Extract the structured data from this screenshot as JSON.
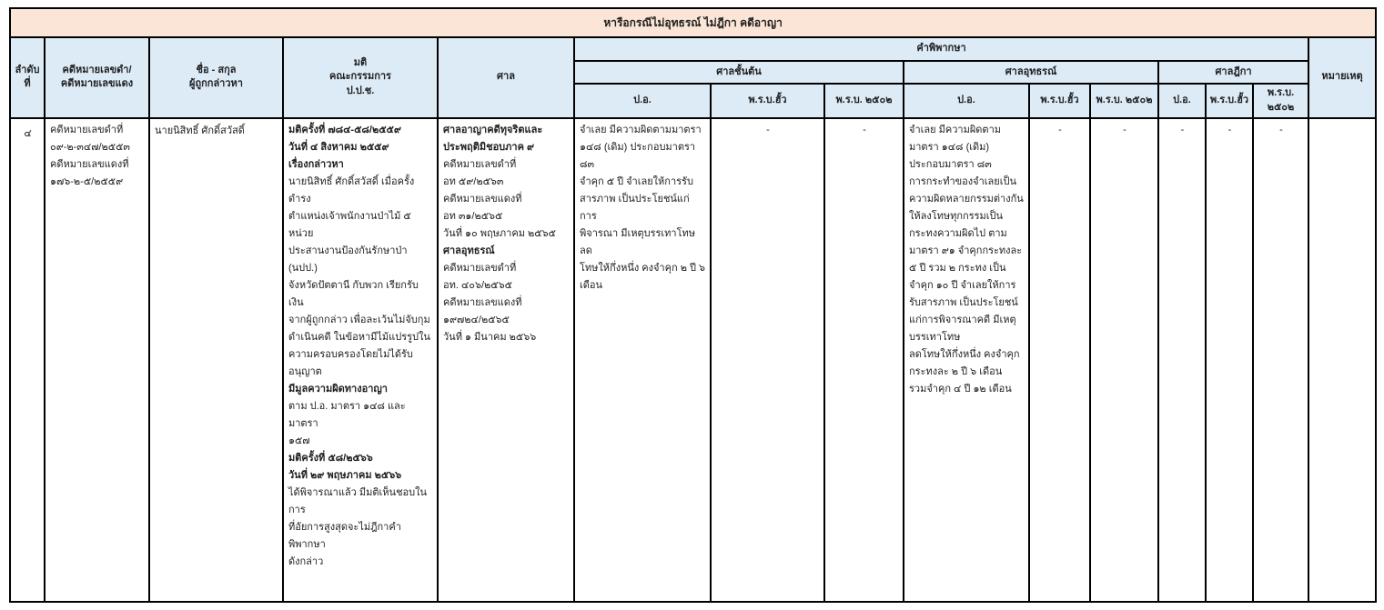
{
  "title": "หารือกรณีไม่อุทธรณ์ ไม่ฎีกา คดีอาญา",
  "colors": {
    "title_bg": "#fbe5d6",
    "header_bg": "#ddebf7",
    "border": "#000000"
  },
  "header": {
    "no": "ลำดับ\nที่",
    "case": "คดีหมายเลขดำ/\nคดีหมายเลขแดง",
    "name": "ชื่อ - สกุล\nผู้ถูกกล่าวหา",
    "resolution": "มติ\nคณะกรรมการ\nป.ป.ช.",
    "court": "ศาล",
    "judgment": "คำพิพากษา",
    "court_levels": [
      "ศาลชั้นต้น",
      "ศาลอุทธรณ์",
      "ศาลฎีกา"
    ],
    "subcols": [
      "ป.อ.",
      "พ.ร.บ.ฮั้ว",
      "พ.ร.บ. ๒๕๐๒"
    ],
    "note": "หมายเหตุ"
  },
  "row": {
    "no": "๔",
    "case_lines": [
      {
        "t": "คดีหมายเลขดำที่",
        "b": false
      },
      {
        "t": "๐๙-๒-๓๔๗/๒๕๕๓",
        "b": false
      },
      {
        "t": "คดีหมายเลขแดงที่",
        "b": false
      },
      {
        "t": "๑๗๖-๒-๕/๒๕๕๙",
        "b": false
      }
    ],
    "name": "นายนิสิทธิ์  ศักดิ์สวัสดิ์",
    "nacc_lines": [
      {
        "t": "มติครั้งที่ ๗๘๔-๕๘/๒๕๕๙",
        "b": true
      },
      {
        "t": "วันที่ ๔ สิงหาคม ๒๕๕๙",
        "b": true
      },
      {
        "t": "เรื่องกล่าวหา",
        "b": true
      },
      {
        "t": "นายนิสิทธิ์  ศักดิ์สวัสดิ์ เมื่อครั้งดำรง",
        "b": false
      },
      {
        "t": "ตำแหน่งเจ้าพนักงานป่าไม้ ๕ หน่วย",
        "b": false
      },
      {
        "t": "ประสานงานป้องกันรักษาป่า (นปป.)",
        "b": false
      },
      {
        "t": "จังหวัดปัตตานี กับพวก เรียกรับเงิน",
        "b": false
      },
      {
        "t": "จากผู้ถูกกล่าว เพื่อละเว้นไม่จับกุม",
        "b": false
      },
      {
        "t": "ดำเนินคดี ในข้อหามีไม้แปรรูปใน",
        "b": false
      },
      {
        "t": "ความครอบครองโดยไม่ได้รับอนุญาต",
        "b": false
      },
      {
        "t": "มีมูลความผิดทางอาญา",
        "b": true
      },
      {
        "t": "ตาม ป.อ. มาตรา ๑๔๘ และมาตรา",
        "b": false
      },
      {
        "t": "๑๕๗",
        "b": false
      },
      {
        "t": "มติครั้งที่ ๕๘/๒๕๖๖",
        "b": true
      },
      {
        "t": "วันที่ ๒๙ พฤษภาคม ๒๕๖๖",
        "b": true
      },
      {
        "t": "ได้พิจารณาแล้ว มีมติเห็นชอบในการ",
        "b": false
      },
      {
        "t": "ที่อัยการสูงสุดจะไม่ฎีกาคำพิพากษา",
        "b": false
      },
      {
        "t": "ดังกล่าว",
        "b": false
      }
    ],
    "court_lines": [
      {
        "t": "ศาลอาญาคดีทุจริตและ",
        "b": true
      },
      {
        "t": "ประพฤติมิชอบภาค ๙",
        "b": true
      },
      {
        "t": "คดีหมายเลขดำที่",
        "b": false
      },
      {
        "t": "อท ๕๙/๒๕๖๓",
        "b": false
      },
      {
        "t": "คดีหมายเลขแดงที่",
        "b": false
      },
      {
        "t": "อท ๓๑/๒๕๖๕",
        "b": false
      },
      {
        "t": "วันที่ ๑๐ พฤษภาคม ๒๕๖๕",
        "b": false
      },
      {
        "t": "ศาลอุทธรณ์",
        "b": true
      },
      {
        "t": "คดีหมายเลขดำที่",
        "b": false
      },
      {
        "t": "อท. ๔๐๖/๒๕๖๕",
        "b": false
      },
      {
        "t": "คดีหมายเลขแดงที่",
        "b": false
      },
      {
        "t": "๑๙๗๒๔/๒๕๖๕",
        "b": false
      },
      {
        "t": "วันที่ ๑ มีนาคม ๒๕๖๖",
        "b": false
      }
    ],
    "first_instance": {
      "po_lines": [
        {
          "t": "จำเลย มีความผิดตามมาตรา",
          "b": false
        },
        {
          "t": "๑๔๘ (เดิม) ประกอบมาตรา ๘๓",
          "b": false
        },
        {
          "t": "จำคุก ๕ ปี จำเลยให้การรับ",
          "b": false
        },
        {
          "t": "สารภาพ เป็นประโยชน์แก่การ",
          "b": false
        },
        {
          "t": "พิจารณา มีเหตุบรรเทาโทษ ลด",
          "b": false
        },
        {
          "t": "โทษให้กึ่งหนึ่ง คงจำคุก ๒ ปี ๖",
          "b": false
        },
        {
          "t": "เดือน",
          "b": false
        }
      ],
      "hua": "-",
      "act2502": "-"
    },
    "appeal": {
      "po_lines": [
        {
          "t": "จำเลย มีความผิดตาม",
          "b": false
        },
        {
          "t": "มาตรา ๑๔๘ (เดิม)",
          "b": false
        },
        {
          "t": "ประกอบมาตรา ๘๓",
          "b": false
        },
        {
          "t": "การกระทำของจำเลยเป็น",
          "b": false
        },
        {
          "t": "ความผิดหลายกรรมต่างกัน",
          "b": false
        },
        {
          "t": "ให้ลงโทษทุกกรรมเป็น",
          "b": false
        },
        {
          "t": "กระทงความผิดไป ตาม",
          "b": false
        },
        {
          "t": "มาตรา ๙๑ จำคุกกระทงละ",
          "b": false
        },
        {
          "t": " ๕ ปี รวม ๒ กระทง เป็น",
          "b": false
        },
        {
          "t": "จำคุก ๑๐ ปี จำเลยให้การ",
          "b": false
        },
        {
          "t": "รับสารภาพ เป็นประโยชน์",
          "b": false
        },
        {
          "t": "แก่การพิจารณาคดี มีเหตุ",
          "b": false
        },
        {
          "t": "บรรเทาโทษ",
          "b": false
        },
        {
          "t": "ลดโทษให้กึ่งหนึ่ง คงจำคุก",
          "b": false
        },
        {
          "t": "กระทงละ ๒ ปี ๖ เดือน",
          "b": false
        },
        {
          "t": "รวมจำคุก ๔ ปี ๑๒ เดือน",
          "b": false
        }
      ],
      "hua": "-",
      "act2502": "-"
    },
    "supreme": {
      "po": "-",
      "hua": "-",
      "act2502": "-"
    },
    "note": ""
  }
}
